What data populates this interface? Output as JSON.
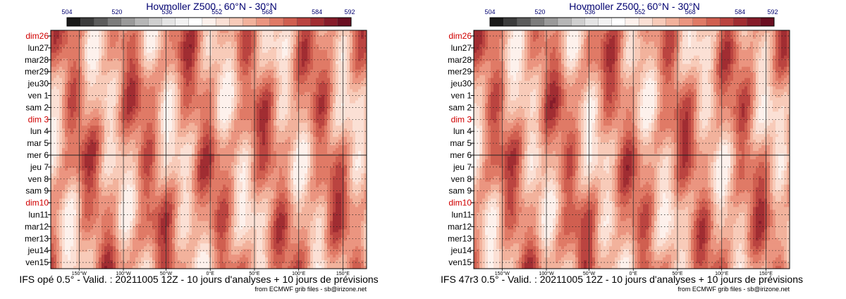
{
  "chart_data": [
    {
      "type": "heatmap",
      "title": "Hovmoller Z500 : 60°N - 30°N",
      "caption": "IFS opé 0.5° - Valid. : 20211005 12Z - 10 jours d'analyses + 10 jours de prévisions",
      "credit": "from ECMWF grib files - sb@irizone.net",
      "colorbar_ticks": [
        "504",
        "520",
        "536",
        "552",
        "568",
        "584",
        "592"
      ],
      "colorbar_colors": [
        "#1a1a1a",
        "#3c3c3c",
        "#5c5c5c",
        "#7c7c7c",
        "#9a9a9a",
        "#b6b6b6",
        "#cfcfcf",
        "#e4e4e4",
        "#f2f2f2",
        "#ffffff",
        "#fdf1ec",
        "#fbe0d5",
        "#f8cbb9",
        "#f2b29c",
        "#eb9580",
        "#e07a66",
        "#d05f50",
        "#bb4440",
        "#a12d32",
        "#861c2a",
        "#6a0f22"
      ],
      "y_labels": [
        {
          "text": "dim26",
          "weekend": true
        },
        {
          "text": "lun27",
          "weekend": false
        },
        {
          "text": "mar28",
          "weekend": false
        },
        {
          "text": "mer29",
          "weekend": false
        },
        {
          "text": "jeu30",
          "weekend": false
        },
        {
          "text": "ven 1",
          "weekend": false
        },
        {
          "text": "sam 2",
          "weekend": false
        },
        {
          "text": "dim 3",
          "weekend": true
        },
        {
          "text": "lun 4",
          "weekend": false
        },
        {
          "text": "mar 5",
          "weekend": false
        },
        {
          "text": "mer 6",
          "weekend": false
        },
        {
          "text": "jeu 7",
          "weekend": false
        },
        {
          "text": "ven 8",
          "weekend": false
        },
        {
          "text": "sam 9",
          "weekend": false
        },
        {
          "text": "dim10",
          "weekend": true
        },
        {
          "text": "lun11",
          "weekend": false
        },
        {
          "text": "mar12",
          "weekend": false
        },
        {
          "text": "mer13",
          "weekend": false
        },
        {
          "text": "jeu14",
          "weekend": false
        },
        {
          "text": "ven15",
          "weekend": false
        }
      ],
      "x_ticks": [
        "150°W",
        "100°W",
        "50°W",
        "0°E",
        "50°E",
        "100°E",
        "150°E"
      ]
    },
    {
      "type": "heatmap",
      "title": "Hovmoller Z500 : 60°N - 30°N",
      "caption": "IFS 47r3 0.5° - Valid. : 20211005 12Z - 10 jours d'analyses + 10 jours de prévisions",
      "credit": "from ECMWF grib files - sb@irizone.net",
      "colorbar_ticks": [
        "504",
        "520",
        "536",
        "552",
        "568",
        "584",
        "592"
      ],
      "colorbar_colors": [
        "#1a1a1a",
        "#3c3c3c",
        "#5c5c5c",
        "#7c7c7c",
        "#9a9a9a",
        "#b6b6b6",
        "#cfcfcf",
        "#e4e4e4",
        "#f2f2f2",
        "#ffffff",
        "#fdf1ec",
        "#fbe0d5",
        "#f8cbb9",
        "#f2b29c",
        "#eb9580",
        "#e07a66",
        "#d05f50",
        "#bb4440",
        "#a12d32",
        "#861c2a",
        "#6a0f22"
      ],
      "y_labels": [
        {
          "text": "dim26",
          "weekend": true
        },
        {
          "text": "lun27",
          "weekend": false
        },
        {
          "text": "mar28",
          "weekend": false
        },
        {
          "text": "mer29",
          "weekend": false
        },
        {
          "text": "jeu30",
          "weekend": false
        },
        {
          "text": "ven 1",
          "weekend": false
        },
        {
          "text": "sam 2",
          "weekend": false
        },
        {
          "text": "dim 3",
          "weekend": true
        },
        {
          "text": "lun 4",
          "weekend": false
        },
        {
          "text": "mar 5",
          "weekend": false
        },
        {
          "text": "mer 6",
          "weekend": false
        },
        {
          "text": "jeu 7",
          "weekend": false
        },
        {
          "text": "ven 8",
          "weekend": false
        },
        {
          "text": "sam 9",
          "weekend": false
        },
        {
          "text": "dim10",
          "weekend": true
        },
        {
          "text": "lun11",
          "weekend": false
        },
        {
          "text": "mar12",
          "weekend": false
        },
        {
          "text": "mer13",
          "weekend": false
        },
        {
          "text": "jeu14",
          "weekend": false
        },
        {
          "text": "ven15",
          "weekend": false
        }
      ],
      "x_ticks": [
        "150°W",
        "100°W",
        "50°W",
        "0°E",
        "50°E",
        "100°E",
        "150°E"
      ]
    }
  ]
}
